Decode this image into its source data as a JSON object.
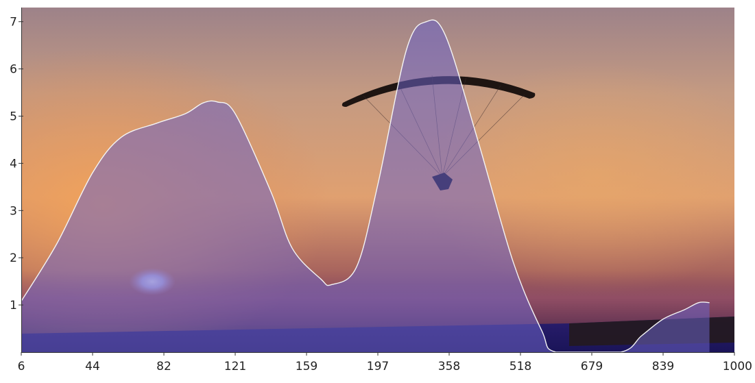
{
  "chart_data": {
    "type": "area",
    "title": "",
    "xlabel": "",
    "ylabel": "",
    "categories": [
      "6",
      "44",
      "82",
      "121",
      "159",
      "197",
      "358",
      "518",
      "679",
      "839",
      "1000"
    ],
    "ylim": [
      0,
      7.3
    ],
    "y_ticks": [
      1,
      2,
      3,
      4,
      5,
      6,
      7
    ],
    "grid": false,
    "legend": "none",
    "background": "sunset sky photograph with a paraglider",
    "series": [
      {
        "points": [
          {
            "x": 0.0,
            "y": 1.08
          },
          {
            "x": 0.5,
            "y": 2.3
          },
          {
            "x": 1.0,
            "y": 3.8
          },
          {
            "x": 1.4,
            "y": 4.55
          },
          {
            "x": 1.9,
            "y": 4.85
          },
          {
            "x": 2.3,
            "y": 5.05
          },
          {
            "x": 2.55,
            "y": 5.28
          },
          {
            "x": 2.75,
            "y": 5.3
          },
          {
            "x": 3.0,
            "y": 5.05
          },
          {
            "x": 3.5,
            "y": 3.4
          },
          {
            "x": 3.8,
            "y": 2.2
          },
          {
            "x": 4.2,
            "y": 1.55
          },
          {
            "x": 4.35,
            "y": 1.43
          },
          {
            "x": 4.7,
            "y": 1.8
          },
          {
            "x": 5.0,
            "y": 3.55
          },
          {
            "x": 5.4,
            "y": 6.4
          },
          {
            "x": 5.68,
            "y": 7.0
          },
          {
            "x": 5.95,
            "y": 6.7
          },
          {
            "x": 6.4,
            "y": 4.5
          },
          {
            "x": 6.9,
            "y": 1.9
          },
          {
            "x": 7.3,
            "y": 0.45
          },
          {
            "x": 7.5,
            "y": 0.0
          },
          {
            "x": 8.4,
            "y": 0.0
          },
          {
            "x": 8.7,
            "y": 0.35
          },
          {
            "x": 9.0,
            "y": 0.7
          },
          {
            "x": 9.3,
            "y": 0.9
          },
          {
            "x": 9.5,
            "y": 1.05
          },
          {
            "x": 9.65,
            "y": 1.05
          }
        ]
      }
    ],
    "colors": {
      "fill": "#6b63c4",
      "fill_opacity": 0.55,
      "stroke": "#f4f4f4",
      "axis": "#333333",
      "sky_top": "#9d8289",
      "sky_glow": "#f2a35a",
      "horizon": "#2a1e6e",
      "sun": "#eef0ff",
      "wing": "#1e1512"
    }
  }
}
